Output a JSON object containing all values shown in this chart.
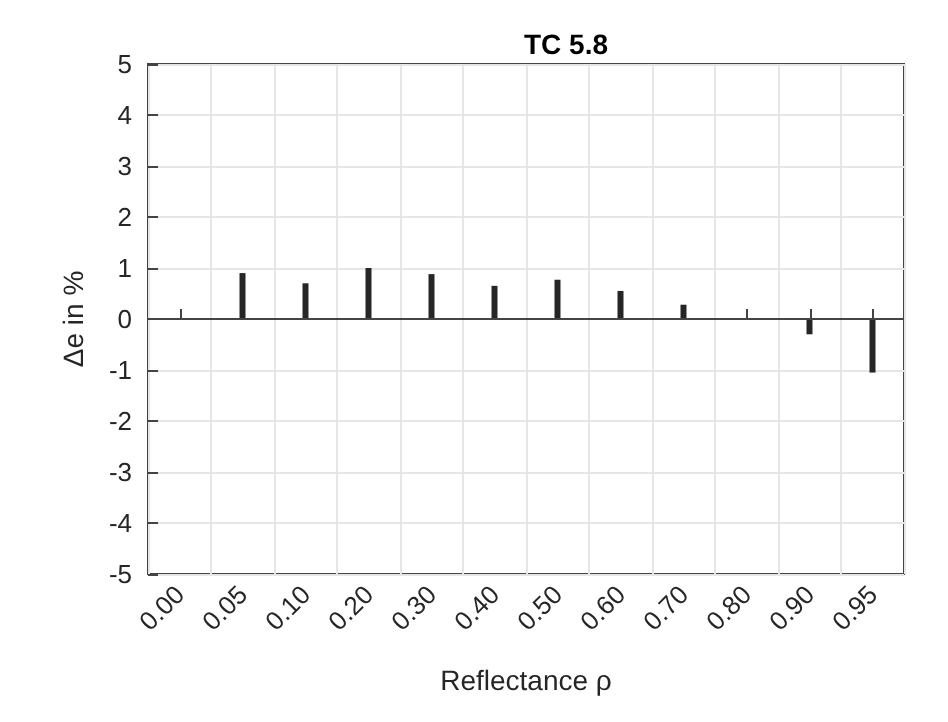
{
  "chart_data": {
    "type": "bar",
    "title": "TC 5.8",
    "xlabel": "Reflectance ρ",
    "ylabel": "Δe in %",
    "categories": [
      "0.00",
      "0.05",
      "0.10",
      "0.20",
      "0.30",
      "0.40",
      "0.50",
      "0.60",
      "0.70",
      "0.80",
      "0.90",
      "0.95"
    ],
    "values": [
      0,
      0.9,
      0.7,
      1.0,
      0.88,
      0.65,
      0.77,
      0.55,
      0.28,
      0,
      -0.3,
      -1.05
    ],
    "color": "#262626",
    "ylim": [
      -5,
      5
    ],
    "yticks": [
      -5,
      -4,
      -3,
      -2,
      -1,
      0,
      1,
      2,
      3,
      4,
      5
    ],
    "grid": true
  }
}
